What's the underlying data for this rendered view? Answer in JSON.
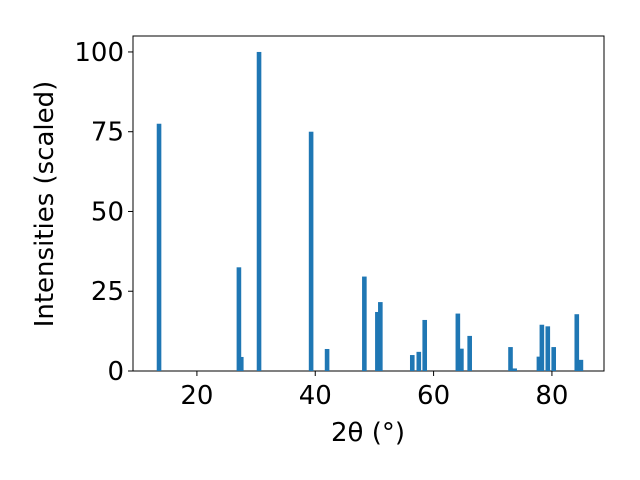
{
  "chart_data": {
    "type": "bar",
    "xlabel": "2θ (°)",
    "ylabel": "Intensities (scaled)",
    "x": [
      13.6,
      27.1,
      27.5,
      30.5,
      39.3,
      42.0,
      48.3,
      50.5,
      51.0,
      56.4,
      57.5,
      58.5,
      64.1,
      64.7,
      66.1,
      73.0,
      73.7,
      77.8,
      78.3,
      79.3,
      80.3,
      84.2,
      84.9
    ],
    "values": [
      77.5,
      32.5,
      4.4,
      100,
      75,
      6.9,
      29.6,
      18.5,
      21.6,
      5,
      6,
      16,
      18,
      7,
      11,
      7.5,
      0.8,
      4.5,
      14.5,
      14,
      7.5,
      17.8,
      3.5
    ],
    "color": "#1f77b4",
    "xlim": [
      9.2,
      88.8
    ],
    "xticks": [
      20,
      40,
      60,
      80
    ],
    "ylim": [
      0,
      105
    ],
    "yticks": [
      0,
      25,
      50,
      75,
      100
    ],
    "grid": false
  }
}
